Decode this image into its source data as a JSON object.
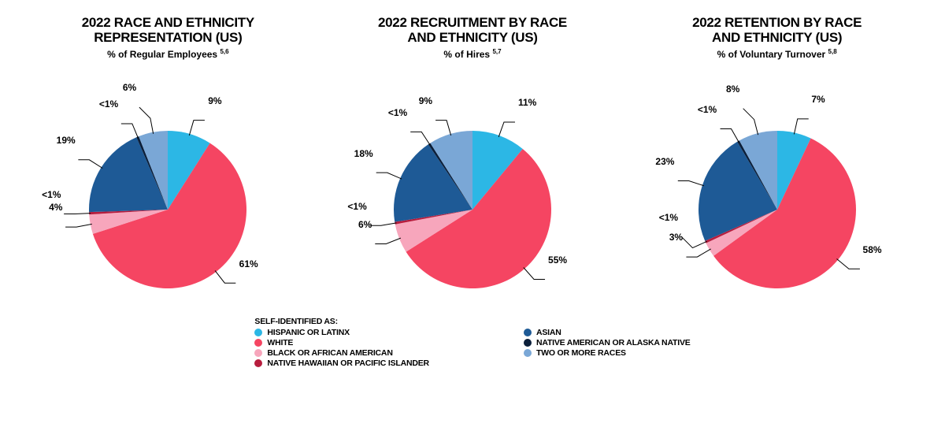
{
  "background_color": "#ffffff",
  "text_color": "#000000",
  "pie_radius": 100,
  "categories": [
    {
      "key": "hispanic",
      "label": "HISPANIC OR LATINX",
      "color": "#2cb7e5"
    },
    {
      "key": "white",
      "label": "WHITE",
      "color": "#f54562"
    },
    {
      "key": "black",
      "label": "BLACK OR AFRICAN AMERICAN",
      "color": "#f7a6bc"
    },
    {
      "key": "pacific",
      "label": "NATIVE HAWAIIAN OR PACIFIC ISLANDER",
      "color": "#b71d3e"
    },
    {
      "key": "asian",
      "label": "ASIAN",
      "color": "#1e5a96"
    },
    {
      "key": "native",
      "label": "NATIVE AMERICAN OR ALASKA NATIVE",
      "color": "#0b1f3a"
    },
    {
      "key": "two",
      "label": "TWO OR MORE RACES",
      "color": "#7aa7d6"
    }
  ],
  "legend": {
    "title": "SELF-IDENTIFIED AS:",
    "col1": [
      "hispanic",
      "white",
      "black",
      "pacific"
    ],
    "col2": [
      "asian",
      "native",
      "two"
    ]
  },
  "charts": [
    {
      "id": "representation",
      "title_line1": "2022 RACE AND ETHNICITY",
      "title_line2": "REPRESENTATION (US)",
      "subtitle": "% of Regular Employees",
      "subtitle_sup": "5,6",
      "slices": [
        {
          "key": "hispanic",
          "value": 9,
          "label": "9%"
        },
        {
          "key": "white",
          "value": 61,
          "label": "61%"
        },
        {
          "key": "black",
          "value": 4,
          "label": "4%"
        },
        {
          "key": "pacific",
          "value": 0.5,
          "label": "<1%"
        },
        {
          "key": "asian",
          "value": 19,
          "label": "19%"
        },
        {
          "key": "native",
          "value": 0.5,
          "label": "<1%"
        },
        {
          "key": "two",
          "value": 6,
          "label": "6%"
        }
      ]
    },
    {
      "id": "recruitment",
      "title_line1": "2022 RECRUITMENT BY RACE",
      "title_line2": "AND ETHNICITY (US)",
      "subtitle": "% of Hires",
      "subtitle_sup": "5,7",
      "slices": [
        {
          "key": "hispanic",
          "value": 11,
          "label": "11%"
        },
        {
          "key": "white",
          "value": 55,
          "label": "55%"
        },
        {
          "key": "black",
          "value": 6,
          "label": "6%"
        },
        {
          "key": "pacific",
          "value": 0.5,
          "label": "<1%"
        },
        {
          "key": "asian",
          "value": 18,
          "label": "18%"
        },
        {
          "key": "native",
          "value": 0.5,
          "label": "<1%"
        },
        {
          "key": "two",
          "value": 9,
          "label": "9%"
        }
      ]
    },
    {
      "id": "retention",
      "title_line1": "2022 RETENTION BY RACE",
      "title_line2": "AND ETHNICITY (US)",
      "subtitle": "% of Voluntary Turnover",
      "subtitle_sup": "5,8",
      "slices": [
        {
          "key": "hispanic",
          "value": 7,
          "label": "7%"
        },
        {
          "key": "white",
          "value": 58,
          "label": "58%"
        },
        {
          "key": "black",
          "value": 3,
          "label": "3%"
        },
        {
          "key": "pacific",
          "value": 0.5,
          "label": "<1%"
        },
        {
          "key": "asian",
          "value": 23,
          "label": "23%"
        },
        {
          "key": "native",
          "value": 0.5,
          "label": "<1%"
        },
        {
          "key": "two",
          "value": 8,
          "label": "8%"
        }
      ]
    }
  ]
}
